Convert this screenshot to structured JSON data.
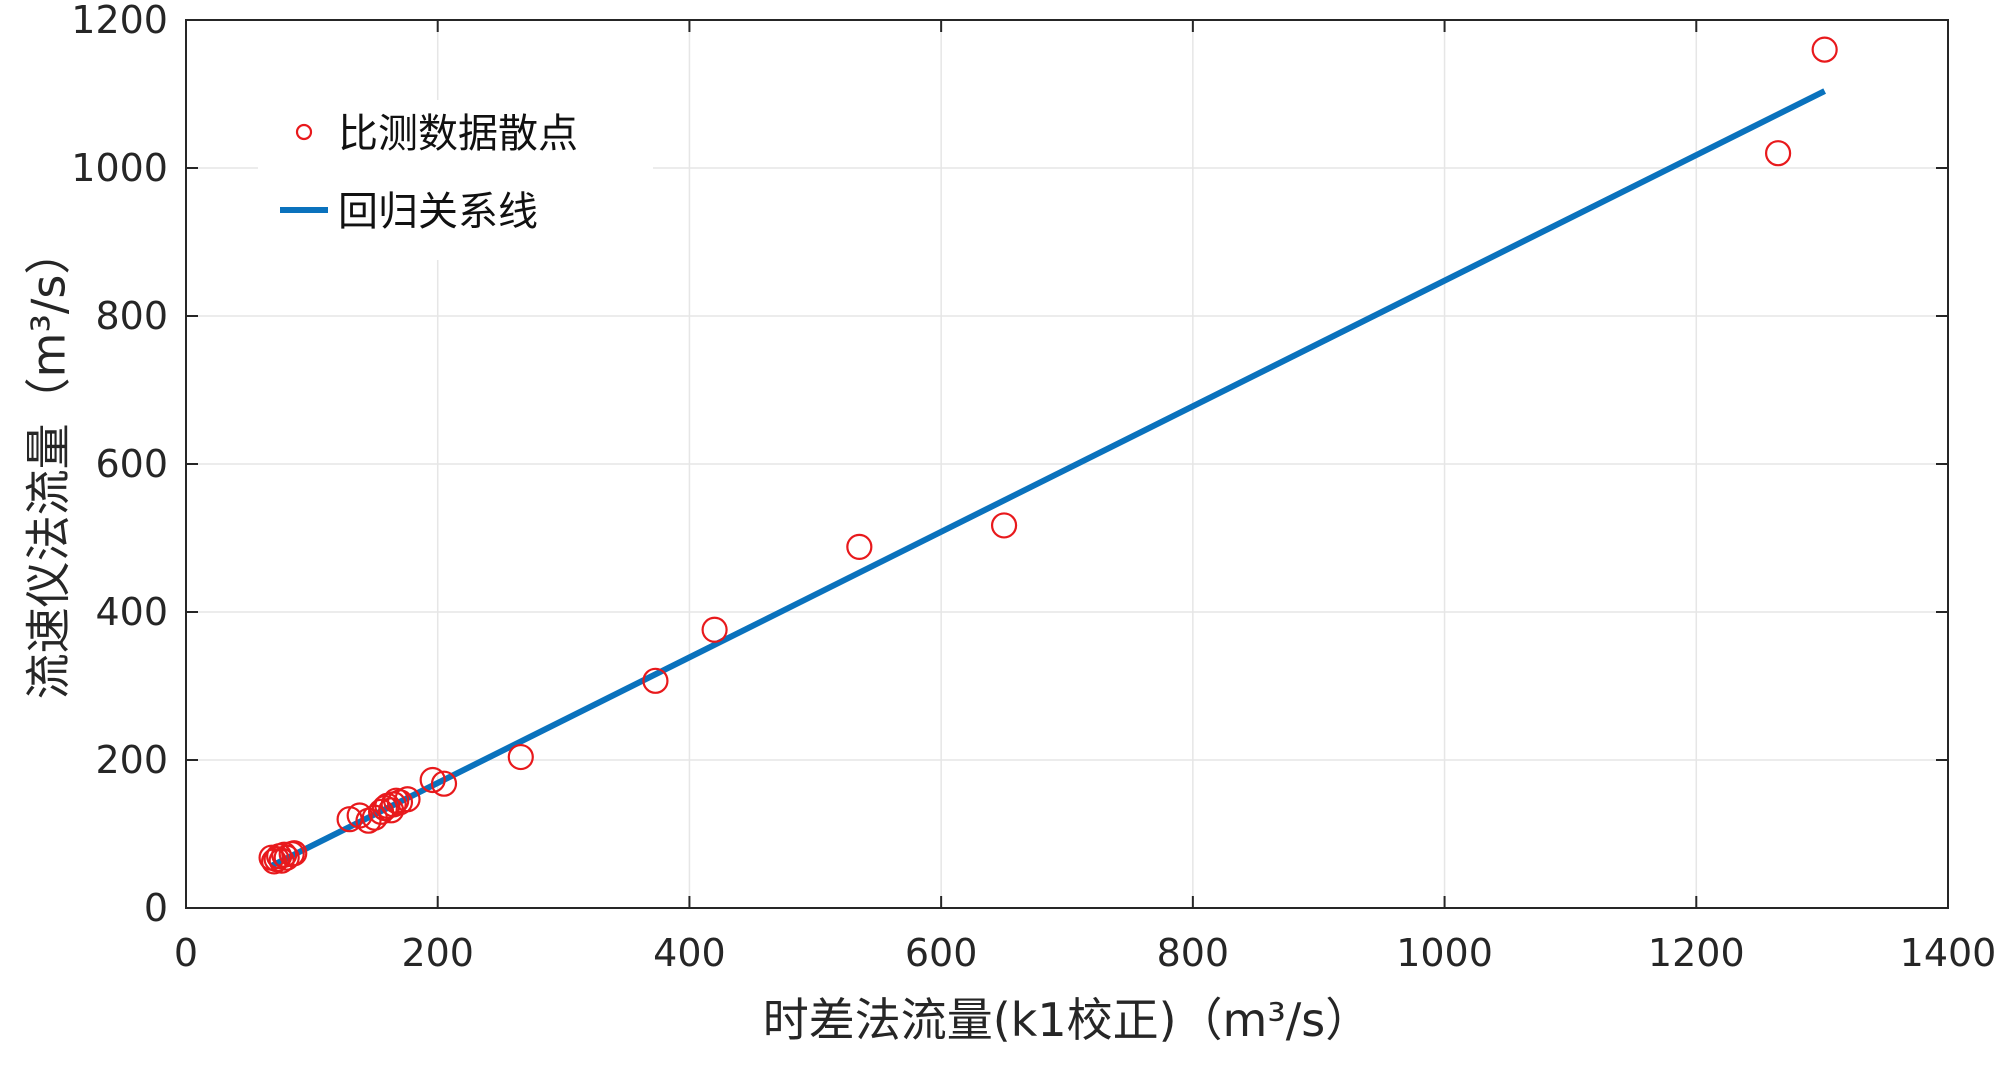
{
  "chart_data": {
    "type": "scatter",
    "xlabel": "时差法流量(k1校正)（m³/s）",
    "ylabel": "流速仪法流量（m³/s）",
    "xlim": [
      0,
      1400
    ],
    "ylim": [
      0,
      1200
    ],
    "x_ticks": [
      0,
      200,
      400,
      600,
      800,
      1000,
      1200,
      1400
    ],
    "y_ticks": [
      0,
      200,
      400,
      600,
      800,
      1000,
      1200
    ],
    "x_tick_labels": [
      "0",
      "200",
      "400",
      "600",
      "800",
      "1000",
      "1200",
      "1400"
    ],
    "y_tick_labels": [
      "0",
      "200",
      "400",
      "600",
      "800",
      "1000",
      "1200"
    ],
    "grid": true,
    "legend_position": "top-left",
    "series": [
      {
        "name": "比测数据散点",
        "kind": "scatter",
        "marker": "open-circle",
        "color": "#e8191c",
        "points": [
          [
            68,
            68
          ],
          [
            70,
            63
          ],
          [
            72,
            66
          ],
          [
            74,
            70
          ],
          [
            76,
            64
          ],
          [
            78,
            72
          ],
          [
            80,
            68
          ],
          [
            84,
            73
          ],
          [
            86,
            74
          ],
          [
            130,
            120
          ],
          [
            138,
            125
          ],
          [
            145,
            118
          ],
          [
            150,
            122
          ],
          [
            155,
            130
          ],
          [
            158,
            135
          ],
          [
            160,
            138
          ],
          [
            163,
            132
          ],
          [
            165,
            140
          ],
          [
            167,
            145
          ],
          [
            170,
            143
          ],
          [
            176,
            147
          ],
          [
            196,
            173
          ],
          [
            205,
            168
          ],
          [
            266,
            204
          ],
          [
            373,
            307
          ],
          [
            420,
            376
          ],
          [
            535,
            488
          ],
          [
            650,
            517
          ],
          [
            1265,
            1020
          ],
          [
            1302,
            1160
          ]
        ]
      },
      {
        "name": "回归关系线",
        "kind": "line",
        "color": "#0a72bd",
        "points": [
          [
            68,
            57
          ],
          [
            1302,
            1104
          ]
        ]
      }
    ]
  }
}
